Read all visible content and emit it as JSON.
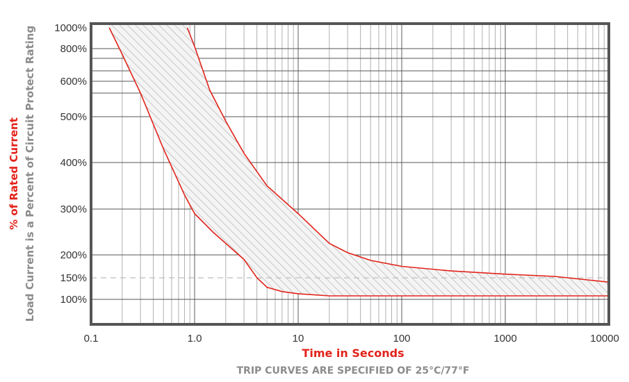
{
  "chart_data": {
    "type": "area",
    "title": "",
    "subtitle": "TRIP CURVES ARE SPECIFIED OF 25°C/77°F",
    "xlabel": "Time in Seconds",
    "ylabel_primary": "% of Rated Current",
    "ylabel_secondary": "Load Current is a Percent of Circuit Protect Rating",
    "x_scale": "log",
    "xlim": [
      0.1,
      10000
    ],
    "ylim": [
      50,
      1000
    ],
    "x_ticks": [
      {
        "value": 0.1,
        "label": "0.1"
      },
      {
        "value": 1,
        "label": "1.0"
      },
      {
        "value": 10,
        "label": "10"
      },
      {
        "value": 100,
        "label": "100"
      },
      {
        "value": 1000,
        "label": "1000"
      },
      {
        "value": 10000,
        "label": "10000"
      }
    ],
    "y_ticks": [
      {
        "value": 1000,
        "label": "1000%"
      },
      {
        "value": 800,
        "label": "800%"
      },
      {
        "value": 600,
        "label": "600%"
      },
      {
        "value": 500,
        "label": "500%"
      },
      {
        "value": 400,
        "label": "400%"
      },
      {
        "value": 300,
        "label": "300%"
      },
      {
        "value": 200,
        "label": "200%"
      },
      {
        "value": 150,
        "label": "150%"
      },
      {
        "value": 100,
        "label": "100%"
      }
    ],
    "extra_gridlines_y": [
      700,
      630,
      580
    ],
    "dashed_reference_y": 150,
    "grid": true,
    "series": [
      {
        "points": [
          [
            0.15,
            1000
          ],
          [
            0.2,
            740
          ],
          [
            0.3,
            580
          ],
          [
            0.5,
            430
          ],
          [
            0.8,
            330
          ],
          [
            1.0,
            290
          ],
          [
            1.5,
            250
          ],
          [
            2.0,
            225
          ],
          [
            3.0,
            190
          ],
          [
            4.0,
            150
          ],
          [
            5.0,
            128
          ],
          [
            7.0,
            118
          ],
          [
            10.0,
            113
          ],
          [
            20.0,
            108
          ],
          [
            100.0,
            108
          ],
          [
            1000.0,
            108
          ],
          [
            10000.0,
            108
          ]
        ]
      },
      {
        "points": [
          [
            0.85,
            1000
          ],
          [
            1.0,
            820
          ],
          [
            1.4,
            585
          ],
          [
            2.0,
            490
          ],
          [
            3.0,
            420
          ],
          [
            5.0,
            350
          ],
          [
            10.0,
            290
          ],
          [
            20.0,
            225
          ],
          [
            30.0,
            205
          ],
          [
            50.0,
            188
          ],
          [
            100.0,
            175
          ],
          [
            300.0,
            165
          ],
          [
            1000.0,
            158
          ],
          [
            3000.0,
            153
          ],
          [
            10000.0,
            140
          ]
        ]
      }
    ],
    "colors": {
      "curve": "#e2231a",
      "hatch": "#9a9a9a",
      "band_fill": "#f4f4f4",
      "frame": "#555555",
      "grid": "#9c9c9c",
      "dashed": "#bdbdbd"
    }
  }
}
